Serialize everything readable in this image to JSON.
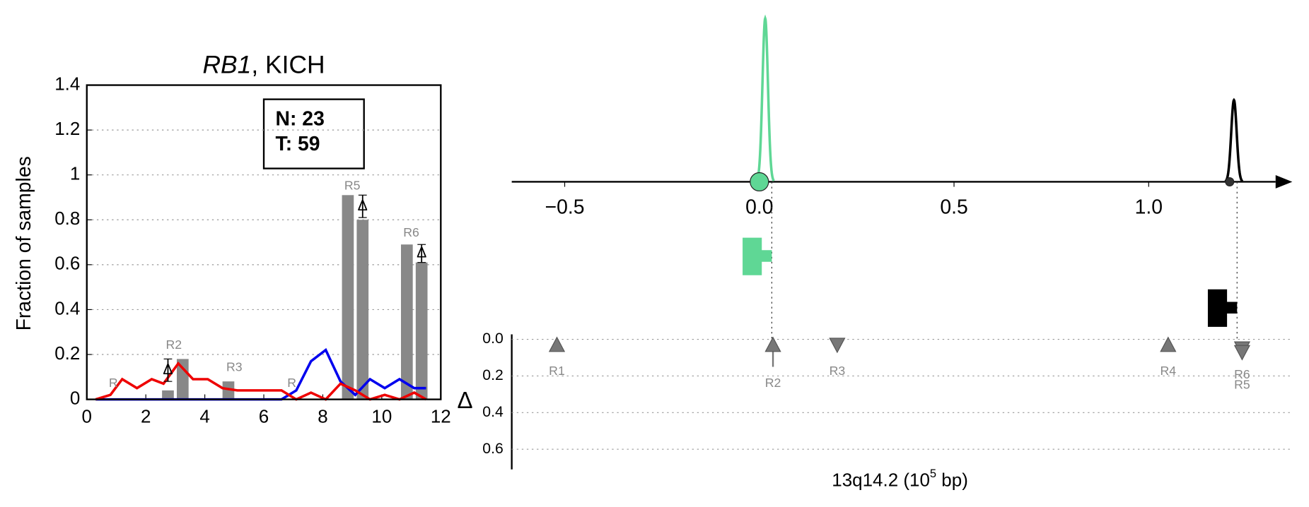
{
  "chart_data": [
    {
      "type": "bar",
      "title": {
        "gene": "RB1",
        "rest": ", KICH"
      },
      "ylabel": "Fraction of samples",
      "xlim": [
        0,
        12
      ],
      "ylim": [
        0,
        1.4
      ],
      "xticks": [
        0,
        2,
        4,
        6,
        8,
        10,
        12
      ],
      "yticks": [
        0,
        0.2,
        0.4,
        0.6,
        0.8,
        1.0,
        1.2,
        1.4
      ],
      "grid": true,
      "annotation": [
        "N: 23",
        "T: 59"
      ],
      "bars": {
        "color": "#888888",
        "x": [
          2.75,
          3.25,
          4.8,
          8.85,
          9.35,
          10.85,
          11.35
        ],
        "values": [
          0.04,
          0.18,
          0.08,
          0.91,
          0.8,
          0.69,
          0.61
        ]
      },
      "x": [
        0.3,
        0.8,
        1.2,
        1.7,
        2.2,
        2.6,
        3.1,
        3.6,
        4.1,
        4.6,
        5.1,
        5.6,
        6.1,
        6.6,
        7.1,
        7.6,
        8.1,
        8.6,
        9.1,
        9.6,
        10.1,
        10.6,
        11.1,
        11.5
      ],
      "series": [
        {
          "color": "#0000ee",
          "values": [
            0,
            0,
            0,
            0,
            0,
            0,
            0,
            0,
            0,
            0,
            0,
            0,
            0,
            0,
            0.04,
            0.17,
            0.22,
            0.08,
            0.02,
            0.09,
            0.05,
            0.09,
            0.05,
            0.05
          ]
        },
        {
          "color": "#ee0000",
          "values": [
            0,
            0.02,
            0.09,
            0.05,
            0.09,
            0.07,
            0.16,
            0.09,
            0.09,
            0.05,
            0.04,
            0.04,
            0.04,
            0.04,
            0,
            0.03,
            0,
            0.07,
            0.04,
            0,
            0.02,
            0,
            0.03,
            0
          ]
        }
      ],
      "delta_markers": [
        {
          "label": "Δ",
          "x": 2.75,
          "y": 0.13,
          "err": 0.05
        },
        {
          "label": "Δ",
          "x": 9.35,
          "y": 0.86,
          "err": 0.05
        },
        {
          "label": "Δ",
          "x": 11.35,
          "y": 0.65,
          "err": 0.04
        }
      ],
      "region_labels": [
        {
          "text": "R",
          "x": 0.9,
          "y": 0.07
        },
        {
          "text": "R2",
          "x": 2.95,
          "y": 0.24
        },
        {
          "text": "R3",
          "x": 5.0,
          "y": 0.14
        },
        {
          "text": "R",
          "x": 6.95,
          "y": 0.07
        },
        {
          "text": "R5",
          "x": 9.0,
          "y": 0.95
        },
        {
          "text": "R6",
          "x": 11.0,
          "y": 0.74
        }
      ]
    },
    {
      "type": "track",
      "xlabel": [
        "13q14.2 (10",
        "5",
        " bp)"
      ],
      "ylabel": "Δ",
      "xlim": [
        -0.636,
        1.326
      ],
      "xticks": [
        {
          "value": -0.5,
          "label": "−0.5"
        },
        {
          "value": 0,
          "label": "0.0"
        },
        {
          "value": 0.5,
          "label": "0.5"
        },
        {
          "value": 1.0,
          "label": "1.0"
        }
      ],
      "ylim": [
        0,
        0.71
      ],
      "yticks": [
        {
          "value": 0,
          "label": "0.0"
        },
        {
          "value": 0.2,
          "label": "0.2"
        },
        {
          "value": 0.4,
          "label": "0.4"
        },
        {
          "value": 0.6,
          "label": "0.6"
        }
      ],
      "peaks": [
        {
          "color": "#5fd795",
          "center": 0.015,
          "height": 1.0,
          "marker": 0.0,
          "line_x": 0.032,
          "flag_level": 0
        },
        {
          "color": "#000000",
          "center": 1.219,
          "height": 0.5,
          "marker": 1.208,
          "line_x": 1.227,
          "flag_level": 1
        }
      ],
      "regions": [
        {
          "name": "R1",
          "x": -0.52,
          "delta": 0.03,
          "direction": "up"
        },
        {
          "name": "R2",
          "x": 0.035,
          "delta": 0.03,
          "direction": "up",
          "err": 0.12
        },
        {
          "name": "R3",
          "x": 0.2,
          "delta": 0.03,
          "direction": "down"
        },
        {
          "name": "R4",
          "x": 1.05,
          "delta": 0.03,
          "direction": "up"
        },
        {
          "name": "R6",
          "x": 1.24,
          "delta": 0.05,
          "direction": "down"
        },
        {
          "name": "R5",
          "x": 1.24,
          "delta": 0.07,
          "direction": "down"
        }
      ]
    }
  ]
}
